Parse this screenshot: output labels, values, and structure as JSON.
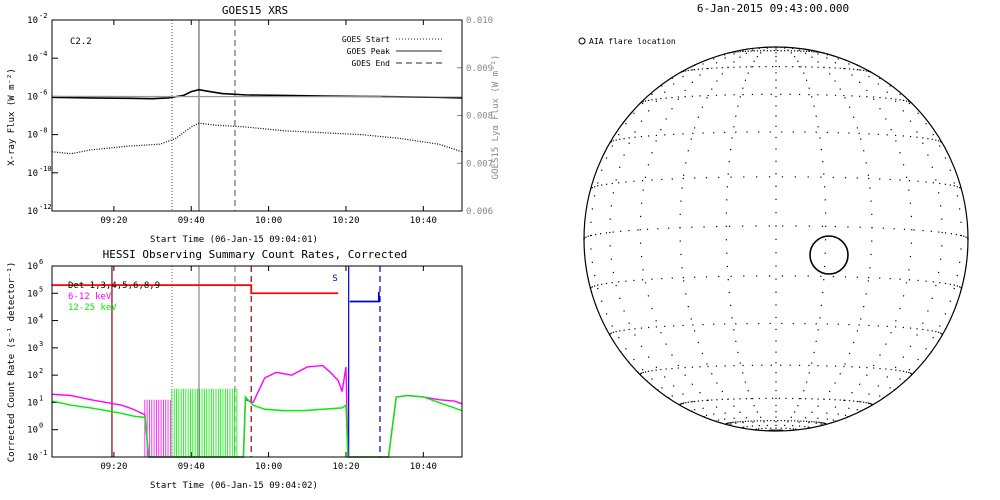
{
  "chart_data": [
    {
      "id": "goes",
      "type": "line",
      "title": "GOES15 XRS",
      "annotation": "C2.2",
      "xlabel": "Start Time (06-Jan-15 09:04:01)",
      "ylabel": "X-ray Flux (W m⁻²)",
      "ylabel_right": "GOES15 Lyα Flux (W m⁻²)",
      "x_range_minutes": [
        0,
        52
      ],
      "x_ticks": [
        {
          "label": "09:20",
          "minute": 16
        },
        {
          "label": "09:40",
          "minute": 36
        },
        {
          "label": "10:00",
          "minute": 56
        },
        {
          "label": "10:20",
          "minute": 76
        },
        {
          "label": "10:40",
          "minute": 96
        }
      ],
      "yscale": "log",
      "ylim_log10": [
        -12,
        -2
      ],
      "y_ticks": [
        {
          "label": "10",
          "exp": "-12",
          "log": -12
        },
        {
          "label": "10",
          "exp": "-10",
          "log": -10
        },
        {
          "label": "10",
          "exp": "-8",
          "log": -8
        },
        {
          "label": "10",
          "exp": "-6",
          "log": -6
        },
        {
          "label": "10",
          "exp": "-4",
          "log": -4
        },
        {
          "label": "10",
          "exp": "-2",
          "log": -2
        }
      ],
      "right_ylim": [
        0.006,
        0.01
      ],
      "right_ticks": [
        "0.006",
        "0.007",
        "0.008",
        "0.009",
        "0.010"
      ],
      "legend": [
        {
          "label": "GOES Start",
          "style": "dotted"
        },
        {
          "label": "GOES Peak",
          "style": "solid"
        },
        {
          "label": "GOES End",
          "style": "dashed"
        }
      ],
      "vlines": [
        {
          "minute": 31,
          "style": "dotted"
        },
        {
          "minute": 38,
          "style": "solid"
        },
        {
          "minute": 47.3,
          "style": "dashed"
        }
      ],
      "series": [
        {
          "id": "long",
          "style": "solid-black",
          "x": [
            0,
            10,
            20,
            26,
            30,
            34,
            36,
            38,
            40,
            44,
            50,
            60,
            70,
            80,
            90,
            100,
            106
          ],
          "log_y": [
            -6.05,
            -6.08,
            -6.1,
            -6.12,
            -6.08,
            -5.95,
            -5.75,
            -5.65,
            -5.72,
            -5.85,
            -5.92,
            -5.95,
            -5.98,
            -6.0,
            -6.02,
            -6.05,
            -6.08
          ]
        },
        {
          "id": "lya",
          "style": "solid-gray",
          "x": [
            0,
            106
          ],
          "log_y": [
            -6.0,
            -6.02
          ]
        },
        {
          "id": "short",
          "style": "dotted-black",
          "x": [
            0,
            5,
            10,
            20,
            28,
            32,
            34,
            36,
            38,
            42,
            50,
            60,
            70,
            80,
            90,
            100,
            106
          ],
          "log_y": [
            -8.9,
            -9.0,
            -8.8,
            -8.6,
            -8.5,
            -8.2,
            -7.9,
            -7.6,
            -7.4,
            -7.5,
            -7.6,
            -7.8,
            -7.9,
            -8.0,
            -8.2,
            -8.5,
            -8.9
          ]
        }
      ]
    },
    {
      "id": "hessi",
      "type": "line",
      "title": "HESSI Observing Summary Count Rates, Corrected",
      "xlabel": "Start Time (06-Jan-15 09:04:02)",
      "ylabel": "Corrected Count Rate (s⁻¹ detector⁻¹)",
      "x_range_minutes": [
        0,
        52
      ],
      "x_ticks": [
        {
          "label": "09:20",
          "minute": 16
        },
        {
          "label": "09:40",
          "minute": 36
        },
        {
          "label": "10:00",
          "minute": 56
        },
        {
          "label": "10:20",
          "minute": 76
        },
        {
          "label": "10:40",
          "minute": 96
        }
      ],
      "yscale": "log",
      "ylim_log10": [
        -1,
        6
      ],
      "y_ticks": [
        {
          "label": "10",
          "exp": "-1",
          "log": -1
        },
        {
          "label": "10",
          "exp": "0",
          "log": 0
        },
        {
          "label": "10",
          "exp": "1",
          "log": 1
        },
        {
          "label": "10",
          "exp": "2",
          "log": 2
        },
        {
          "label": "10",
          "exp": "3",
          "log": 3
        },
        {
          "label": "10",
          "exp": "4",
          "log": 4
        },
        {
          "label": "10",
          "exp": "5",
          "log": 5
        },
        {
          "label": "10",
          "exp": "6",
          "log": 6
        }
      ],
      "legend": [
        {
          "label": "Det 1,3,4,5,6,8,9",
          "color": "#000000"
        },
        {
          "label": "6-12 keV",
          "color": "#ff00ff"
        },
        {
          "label": "12-25 keV",
          "color": "#00ee00"
        }
      ],
      "flag_label": "S",
      "vlines": [
        {
          "minute": 15.5,
          "style": "solid",
          "color": "#8b0000"
        },
        {
          "minute": 31,
          "style": "dotted",
          "color": "#888888"
        },
        {
          "minute": 38,
          "style": "solid",
          "color": "#888888"
        },
        {
          "minute": 47.3,
          "style": "dashed",
          "color": "#888888"
        },
        {
          "minute": 51.5,
          "style": "dashed",
          "color": "#8b0000"
        },
        {
          "minute": 76.7,
          "style": "solid",
          "color": "#0000cc"
        },
        {
          "minute": 84.8,
          "style": "dashed",
          "color": "#0000cc"
        }
      ],
      "series": [
        {
          "id": "attenuator",
          "name": "Det 1,3,4,5,6,8,9",
          "color": "#ff0000",
          "x": [
            0,
            51.5,
            51.5,
            74
          ],
          "log_y": [
            5.3,
            5.3,
            5.0,
            5.0
          ]
        },
        {
          "id": "flag",
          "color": "#0000cc",
          "x": [
            77,
            84.5,
            84.5
          ],
          "log_y": [
            4.7,
            4.7,
            5.05
          ]
        },
        {
          "id": "lo",
          "name": "6-12 keV",
          "color": "#ff00ff",
          "x": [
            0,
            5,
            10,
            14,
            18,
            21,
            24,
            25,
            49.5,
            50,
            52,
            55,
            58,
            62,
            66,
            70,
            72,
            74,
            75,
            76,
            76.5,
            87,
            89,
            92,
            96,
            100,
            104,
            106
          ],
          "log_y": [
            1.3,
            1.25,
            1.1,
            1.0,
            0.9,
            0.75,
            0.55,
            -1,
            -1,
            1.1,
            1.0,
            1.9,
            2.1,
            2.0,
            2.3,
            2.35,
            2.1,
            1.8,
            1.4,
            2.3,
            -1,
            -1,
            1.2,
            1.25,
            1.2,
            1.1,
            1.05,
            0.95
          ]
        },
        {
          "id": "hi",
          "name": "12-25 keV",
          "color": "#00ee00",
          "x": [
            0,
            5,
            10,
            14,
            18,
            21,
            24,
            25,
            49.5,
            50,
            52,
            55,
            60,
            65,
            70,
            75,
            76,
            76.5,
            87,
            89,
            92,
            96,
            100,
            104,
            106
          ],
          "log_y": [
            1.05,
            0.9,
            0.8,
            0.7,
            0.6,
            0.5,
            0.45,
            -1,
            -1,
            1.2,
            0.9,
            0.75,
            0.7,
            0.7,
            0.75,
            0.8,
            0.9,
            -1,
            -1,
            1.2,
            1.25,
            1.2,
            1.0,
            0.8,
            0.7
          ]
        }
      ]
    },
    {
      "id": "disk",
      "type": "diagram",
      "title": "6-Jan-2015 09:43:00.000",
      "legend": [
        {
          "label": "AIA flare location",
          "marker": "circle"
        }
      ]
    }
  ]
}
